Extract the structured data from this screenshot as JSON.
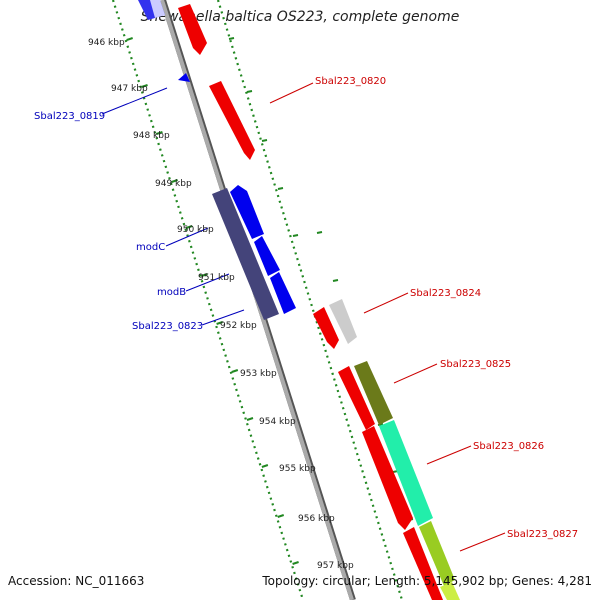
{
  "title": "Shewanella baltica OS223, complete genome",
  "footer": {
    "accession": "Accession: NC_011663",
    "stats": "Topology: circular; Length: 5,145,902 bp; Genes: 4,281"
  },
  "colors": {
    "forward_label": "#cc0000",
    "reverse_label": "#0000bb",
    "backbone": "#999999",
    "tick": "#228822"
  },
  "ruler": {
    "labels": [
      "946 kbp",
      "947 kbp",
      "948 kbp",
      "949 kbp",
      "950 kbp",
      "951 kbp",
      "952 kbp",
      "953 kbp",
      "954 kbp",
      "955 kbp",
      "956 kbp",
      "957 kbp"
    ]
  },
  "gene_labels": [
    {
      "text": "Sbal223_0819",
      "strand": "reverse"
    },
    {
      "text": "Sbal223_0820",
      "strand": "forward"
    },
    {
      "text": "modC",
      "strand": "reverse"
    },
    {
      "text": "modB",
      "strand": "reverse"
    },
    {
      "text": "Sbal223_0823",
      "strand": "reverse"
    },
    {
      "text": "Sbal223_0824",
      "strand": "forward"
    },
    {
      "text": "Sbal223_0825",
      "strand": "forward"
    },
    {
      "text": "Sbal223_0826",
      "strand": "forward"
    },
    {
      "text": "Sbal223_0827",
      "strand": "forward"
    }
  ]
}
